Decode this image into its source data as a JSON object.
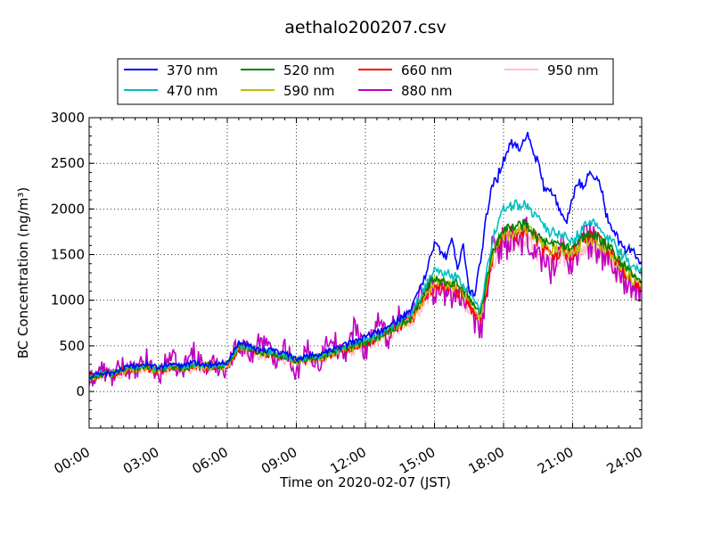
{
  "chart_data": {
    "type": "line",
    "title": "aethalo200207.csv",
    "xlabel": "Time on 2020-02-07 (JST)",
    "ylabel": "BC Concentration (ng/m³)",
    "ylim": [
      -400,
      3000
    ],
    "yticks": [
      0,
      500,
      1000,
      1500,
      2000,
      2500,
      3000
    ],
    "xlim": [
      0,
      24
    ],
    "xticks": [
      0,
      3,
      6,
      9,
      12,
      15,
      18,
      21,
      24
    ],
    "xtick_labels": [
      "00:00",
      "03:00",
      "06:00",
      "09:00",
      "12:00",
      "15:00",
      "18:00",
      "21:00",
      "24:00"
    ],
    "grid": true,
    "legend_placement": "top",
    "series": [
      {
        "name": "370 nm",
        "color": "#0000ff",
        "x": [
          0,
          0.5,
          1,
          1.5,
          2,
          2.5,
          3,
          3.5,
          4,
          4.5,
          5,
          5.5,
          6,
          6.5,
          7,
          7.5,
          8,
          8.5,
          9,
          9.5,
          10,
          10.5,
          11,
          11.5,
          12,
          12.5,
          13,
          13.5,
          14,
          14.5,
          15,
          15.25,
          15.5,
          15.75,
          16,
          16.25,
          16.5,
          16.75,
          17,
          17.25,
          17.5,
          17.75,
          18,
          18.25,
          18.5,
          18.75,
          19,
          19.25,
          19.5,
          19.75,
          20,
          20.25,
          20.5,
          20.75,
          21,
          21.25,
          21.5,
          21.75,
          22,
          22.25,
          22.5,
          22.75,
          23,
          23.25,
          23.5,
          23.75,
          24
        ],
        "y": [
          150,
          200,
          200,
          250,
          280,
          300,
          260,
          300,
          280,
          320,
          300,
          300,
          320,
          550,
          500,
          450,
          450,
          420,
          350,
          400,
          400,
          450,
          500,
          550,
          600,
          650,
          700,
          800,
          900,
          1200,
          1600,
          1550,
          1450,
          1700,
          1350,
          1600,
          1100,
          1050,
          1450,
          1900,
          2300,
          2350,
          2550,
          2700,
          2750,
          2650,
          2850,
          2600,
          2500,
          2250,
          2200,
          2100,
          1950,
          1850,
          2100,
          2300,
          2200,
          2450,
          2350,
          2200,
          1900,
          1800,
          1650,
          1550,
          1550,
          1500,
          1400
        ]
      },
      {
        "name": "470 nm",
        "color": "#00bfbf",
        "x": [
          0,
          0.5,
          1,
          1.5,
          2,
          2.5,
          3,
          3.5,
          4,
          4.5,
          5,
          5.5,
          6,
          6.5,
          7,
          7.5,
          8,
          8.5,
          9,
          9.5,
          10,
          10.5,
          11,
          11.5,
          12,
          12.5,
          13,
          13.5,
          14,
          14.5,
          15,
          15.5,
          16,
          16.5,
          17,
          17.5,
          18,
          18.5,
          19,
          19.5,
          20,
          20.5,
          21,
          21.5,
          22,
          22.5,
          23,
          23.5,
          24
        ],
        "y": [
          150,
          200,
          200,
          250,
          270,
          290,
          250,
          290,
          270,
          300,
          290,
          290,
          300,
          520,
          480,
          440,
          430,
          400,
          340,
          380,
          390,
          430,
          480,
          520,
          560,
          620,
          680,
          760,
          860,
          1100,
          1350,
          1300,
          1250,
          1100,
          900,
          1650,
          2000,
          2050,
          2050,
          1900,
          1750,
          1700,
          1650,
          1800,
          1850,
          1700,
          1550,
          1400,
          1300
        ]
      },
      {
        "name": "520 nm",
        "color": "#008000",
        "x": [
          0,
          0.5,
          1,
          1.5,
          2,
          2.5,
          3,
          3.5,
          4,
          4.5,
          5,
          5.5,
          6,
          6.5,
          7,
          7.5,
          8,
          8.5,
          9,
          9.5,
          10,
          10.5,
          11,
          11.5,
          12,
          12.5,
          13,
          13.5,
          14,
          14.5,
          15,
          15.5,
          16,
          16.5,
          17,
          17.5,
          18,
          18.5,
          19,
          19.5,
          20,
          20.5,
          21,
          21.5,
          22,
          22.5,
          23,
          23.5,
          24
        ],
        "y": [
          150,
          190,
          190,
          240,
          260,
          280,
          240,
          280,
          260,
          290,
          280,
          280,
          290,
          500,
          470,
          430,
          420,
          390,
          330,
          370,
          380,
          420,
          470,
          500,
          540,
          600,
          660,
          740,
          820,
          1050,
          1250,
          1200,
          1200,
          1050,
          850,
          1550,
          1800,
          1800,
          1850,
          1700,
          1600,
          1600,
          1550,
          1700,
          1700,
          1600,
          1450,
          1300,
          1200
        ]
      },
      {
        "name": "590 nm",
        "color": "#bfbf00",
        "x": [
          0,
          0.5,
          1,
          1.5,
          2,
          2.5,
          3,
          3.5,
          4,
          4.5,
          5,
          5.5,
          6,
          6.5,
          7,
          7.5,
          8,
          8.5,
          9,
          9.5,
          10,
          10.5,
          11,
          11.5,
          12,
          12.5,
          13,
          13.5,
          14,
          14.5,
          15,
          15.5,
          16,
          16.5,
          17,
          17.5,
          18,
          18.5,
          19,
          19.5,
          20,
          20.5,
          21,
          21.5,
          22,
          22.5,
          23,
          23.5,
          24
        ],
        "y": [
          140,
          190,
          190,
          230,
          250,
          270,
          230,
          270,
          250,
          280,
          270,
          270,
          280,
          490,
          460,
          420,
          410,
          380,
          320,
          360,
          370,
          410,
          460,
          490,
          530,
          590,
          650,
          720,
          800,
          1000,
          1200,
          1180,
          1150,
          1000,
          820,
          1500,
          1700,
          1750,
          1800,
          1650,
          1550,
          1550,
          1500,
          1650,
          1650,
          1550,
          1400,
          1250,
          1150
        ]
      },
      {
        "name": "660 nm",
        "color": "#ff0000",
        "x": [
          0,
          0.5,
          1,
          1.5,
          2,
          2.5,
          3,
          3.5,
          4,
          4.5,
          5,
          5.5,
          6,
          6.5,
          7,
          7.5,
          8,
          8.5,
          9,
          9.5,
          10,
          10.5,
          11,
          11.5,
          12,
          12.5,
          13,
          13.5,
          14,
          14.5,
          15,
          15.5,
          16,
          16.5,
          17,
          17.5,
          18,
          18.5,
          19,
          19.5,
          20,
          20.5,
          21,
          21.5,
          22,
          22.5,
          23,
          23.5,
          24
        ],
        "y": [
          140,
          190,
          180,
          230,
          250,
          270,
          230,
          270,
          250,
          280,
          270,
          270,
          280,
          480,
          460,
          420,
          410,
          380,
          320,
          360,
          370,
          410,
          460,
          490,
          520,
          580,
          640,
          710,
          790,
          1000,
          1150,
          1150,
          1100,
          950,
          800,
          1450,
          1750,
          1700,
          1800,
          1650,
          1500,
          1550,
          1500,
          1650,
          1700,
          1550,
          1400,
          1250,
          1150
        ]
      },
      {
        "name": "880 nm",
        "color": "#bf00bf",
        "x": [
          0,
          0.5,
          1,
          1.5,
          2,
          2.5,
          3,
          3.5,
          4,
          4.5,
          5,
          5.5,
          6,
          6.5,
          7,
          7.5,
          8,
          8.5,
          9,
          9.5,
          10,
          10.5,
          11,
          11.5,
          12,
          12.5,
          13,
          13.5,
          14,
          14.5,
          15,
          15.5,
          16,
          16.5,
          17,
          17.5,
          18,
          18.5,
          19,
          19.5,
          20,
          20.5,
          21,
          21.5,
          22,
          22.5,
          23,
          23.5,
          24
        ],
        "y": [
          100,
          250,
          150,
          300,
          200,
          350,
          150,
          400,
          200,
          450,
          250,
          300,
          250,
          550,
          400,
          600,
          350,
          500,
          200,
          450,
          300,
          650,
          350,
          700,
          450,
          750,
          600,
          850,
          800,
          1200,
          1100,
          1050,
          1100,
          850,
          650,
          1500,
          1650,
          1600,
          1700,
          1500,
          1350,
          1550,
          1450,
          1700,
          1600,
          1450,
          1300,
          1150,
          1000
        ]
      },
      {
        "name": "950 nm",
        "color": "#ffc0cb",
        "x": [
          0,
          0.5,
          1,
          1.5,
          2,
          2.5,
          3,
          3.5,
          4,
          4.5,
          5,
          5.5,
          6,
          6.5,
          7,
          7.5,
          8,
          8.5,
          9,
          9.5,
          10,
          10.5,
          11,
          11.5,
          12,
          12.5,
          13,
          13.5,
          14,
          14.5,
          15,
          15.5,
          16,
          16.5,
          17,
          17.5,
          18,
          18.5,
          19,
          19.5,
          20,
          20.5,
          21,
          21.5,
          22,
          22.5,
          23,
          23.5,
          24
        ],
        "y": [
          130,
          180,
          170,
          220,
          240,
          260,
          220,
          260,
          240,
          270,
          260,
          260,
          270,
          470,
          440,
          400,
          390,
          360,
          300,
          340,
          350,
          390,
          440,
          470,
          500,
          560,
          620,
          690,
          770,
          950,
          1100,
          1100,
          1050,
          900,
          700,
          1400,
          1600,
          1600,
          1650,
          1500,
          1400,
          1450,
          1450,
          1550,
          1550,
          1450,
          1300,
          1150,
          1050
        ]
      }
    ]
  }
}
